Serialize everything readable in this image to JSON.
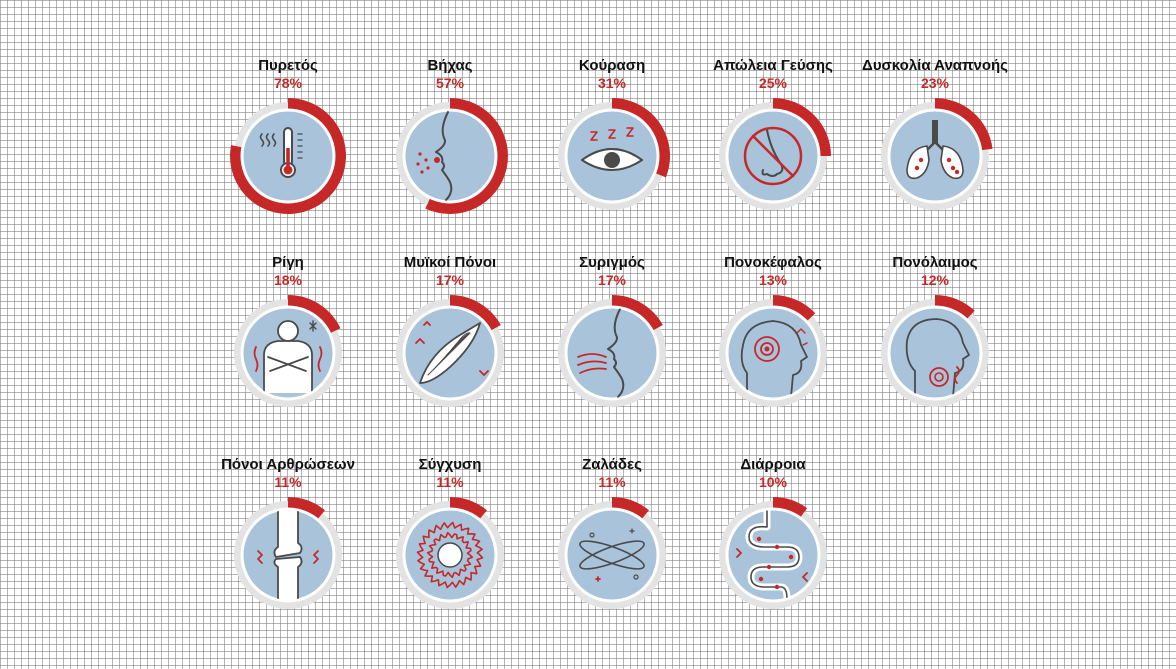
{
  "chart_data": {
    "type": "pie",
    "colors": {
      "accent": "#c62828",
      "track": "#e3e3e3",
      "fill": "#a9c3da",
      "line": "#4a4a4a"
    },
    "items": [
      {
        "name": "Πυρετός",
        "label": "78%",
        "value": 78,
        "icon": "thermometer-icon"
      },
      {
        "name": "Βήχας",
        "label": "57%",
        "value": 57,
        "icon": "cough-icon"
      },
      {
        "name": "Κούραση",
        "label": "31%",
        "value": 31,
        "icon": "tired-eye-icon"
      },
      {
        "name": "Απώλεια Γεύσης",
        "label": "25%",
        "value": 25,
        "icon": "no-smell-icon"
      },
      {
        "name": "Δυσκολία Αναπνοής",
        "label": "23%",
        "value": 23,
        "icon": "lungs-icon"
      },
      {
        "name": "Ρίγη",
        "label": "18%",
        "value": 18,
        "icon": "chills-icon"
      },
      {
        "name": "Μυϊκοί Πόνοι",
        "label": "17%",
        "value": 17,
        "icon": "muscle-icon"
      },
      {
        "name": "Συριγμός",
        "label": "17%",
        "value": 17,
        "icon": "wheeze-icon"
      },
      {
        "name": "Πονοκέφαλος",
        "label": "13%",
        "value": 13,
        "icon": "headache-icon"
      },
      {
        "name": "Πονόλαιμος",
        "label": "12%",
        "value": 12,
        "icon": "sore-throat-icon"
      },
      {
        "name": "Πόνοι Αρθρώσεων",
        "label": "11%",
        "value": 11,
        "icon": "joint-icon"
      },
      {
        "name": "Σύγχυση",
        "label": "11%",
        "value": 11,
        "icon": "confusion-icon"
      },
      {
        "name": "Ζαλάδες",
        "label": "11%",
        "value": 11,
        "icon": "dizziness-icon"
      },
      {
        "name": "Διάρροια",
        "label": "10%",
        "value": 10,
        "icon": "intestine-icon"
      }
    ]
  }
}
